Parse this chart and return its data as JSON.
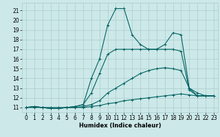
{
  "xlabel": "Humidex (Indice chaleur)",
  "bg_color": "#cce8e8",
  "line_color": "#006060",
  "grid_color": "#aacccc",
  "ylim": [
    10.5,
    21.8
  ],
  "xlim": [
    -0.5,
    23.5
  ],
  "yticks": [
    11,
    12,
    13,
    14,
    15,
    16,
    17,
    18,
    19,
    20,
    21
  ],
  "xticks": [
    0,
    1,
    2,
    3,
    4,
    5,
    6,
    7,
    8,
    9,
    10,
    11,
    12,
    13,
    14,
    15,
    16,
    17,
    18,
    19,
    20,
    21,
    22,
    23
  ],
  "line1_x": [
    0,
    1,
    2,
    3,
    4,
    5,
    6,
    7,
    8,
    9,
    10,
    11,
    12,
    13,
    14,
    15,
    16,
    17,
    18,
    19,
    20,
    21,
    22,
    23
  ],
  "line1_y": [
    11.0,
    11.1,
    11.0,
    10.9,
    10.9,
    11.0,
    11.0,
    11.0,
    11.1,
    11.2,
    11.4,
    11.5,
    11.7,
    11.8,
    11.9,
    12.0,
    12.1,
    12.2,
    12.3,
    12.4,
    12.3,
    12.2,
    12.2,
    12.2
  ],
  "line2_x": [
    0,
    1,
    2,
    3,
    4,
    5,
    6,
    7,
    8,
    9,
    10,
    11,
    12,
    13,
    14,
    15,
    16,
    17,
    18,
    19,
    20,
    21,
    22,
    23
  ],
  "line2_y": [
    11.0,
    11.1,
    11.0,
    10.9,
    10.9,
    11.0,
    11.0,
    11.1,
    11.3,
    11.7,
    12.5,
    13.0,
    13.5,
    14.0,
    14.5,
    14.8,
    15.0,
    15.1,
    15.0,
    14.8,
    13.0,
    12.5,
    12.2,
    12.2
  ],
  "line3_x": [
    0,
    1,
    2,
    3,
    4,
    5,
    6,
    7,
    8,
    9,
    10,
    11,
    12,
    13,
    14,
    15,
    16,
    17,
    18,
    19,
    20,
    21,
    22,
    23
  ],
  "line3_y": [
    11.0,
    11.1,
    11.0,
    10.9,
    10.9,
    11.0,
    11.1,
    11.3,
    12.5,
    14.5,
    16.5,
    17.0,
    17.0,
    17.0,
    17.0,
    17.0,
    17.0,
    17.0,
    17.0,
    16.8,
    12.8,
    12.2,
    12.2,
    12.2
  ],
  "line4_x": [
    0,
    1,
    2,
    3,
    4,
    5,
    6,
    7,
    8,
    9,
    10,
    11,
    12,
    13,
    14,
    15,
    16,
    17,
    18,
    19,
    20,
    21,
    22,
    23
  ],
  "line4_y": [
    11.0,
    11.0,
    11.0,
    11.0,
    11.0,
    11.0,
    11.1,
    11.3,
    14.0,
    16.0,
    19.5,
    21.2,
    21.2,
    18.5,
    17.5,
    17.0,
    17.0,
    17.5,
    18.7,
    18.5,
    13.0,
    12.2,
    12.2,
    12.2
  ],
  "marker": "+",
  "marker_size": 3,
  "linewidth": 0.8,
  "tick_fontsize": 5.5,
  "xlabel_fontsize": 6.0
}
